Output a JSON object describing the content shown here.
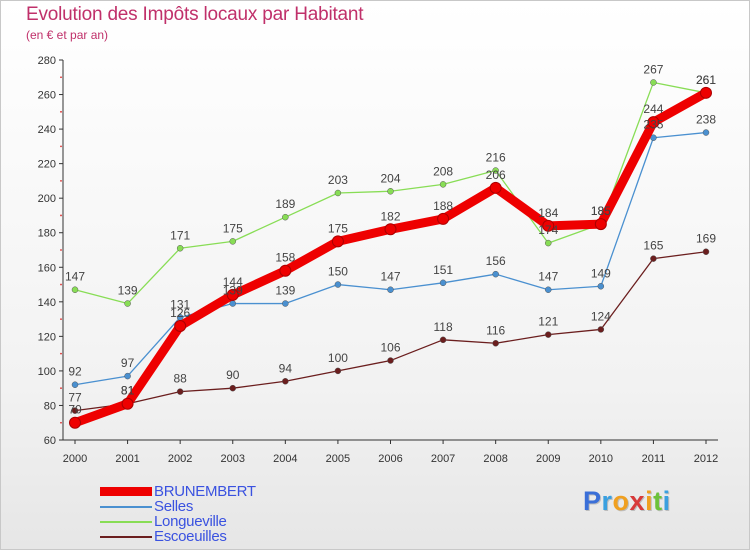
{
  "chart_data": {
    "type": "line",
    "title": "Evolution des Impôts locaux par Habitant",
    "subtitle": "(en € et par an)",
    "categories": [
      "2000",
      "2001",
      "2002",
      "2003",
      "2004",
      "2005",
      "2006",
      "2007",
      "2008",
      "2009",
      "2010",
      "2011",
      "2012"
    ],
    "ylim": [
      60,
      280
    ],
    "yticks": [
      60,
      80,
      100,
      120,
      140,
      160,
      180,
      200,
      220,
      240,
      260,
      280
    ],
    "grid": false,
    "legend_position": "bottom-left",
    "series": [
      {
        "name": "BRUNEMBERT",
        "color": "#ee0000",
        "values": [
          70,
          81,
          126,
          144,
          158,
          175,
          182,
          188,
          206,
          184,
          185,
          244,
          261
        ]
      },
      {
        "name": "Selles",
        "color": "#4a90d0",
        "values": [
          92,
          97,
          131,
          139,
          139,
          150,
          147,
          151,
          156,
          147,
          149,
          235,
          238
        ]
      },
      {
        "name": "Longueville",
        "color": "#88dd55",
        "values": [
          147,
          139,
          171,
          175,
          189,
          203,
          204,
          208,
          216,
          174,
          185,
          267,
          261
        ]
      },
      {
        "name": "Escoeuilles",
        "color": "#6b1e1e",
        "values": [
          77,
          81,
          88,
          90,
          94,
          100,
          106,
          118,
          116,
          121,
          124,
          165,
          169
        ]
      }
    ]
  },
  "logo": {
    "letters": [
      "P",
      "r",
      "o",
      "x",
      "i",
      "t",
      "i"
    ],
    "colors": [
      "#3a6fd8",
      "#3aa0e0",
      "#f0a020",
      "#d83a3a",
      "#f0a020",
      "#6cc23a",
      "#3aa0e0"
    ]
  }
}
